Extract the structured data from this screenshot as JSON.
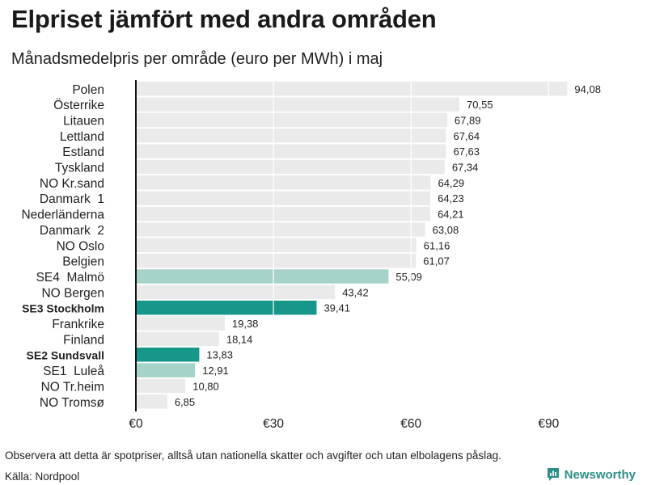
{
  "header": {
    "title": "Elpriset jämfört med andra områden",
    "subtitle": "Månadsmedelpris per område (euro per MWh) i maj"
  },
  "footer": {
    "note": "Observera att detta är spotpriser, alltså utan nationella skatter och avgifter och utan elbolagens påslag.",
    "source": "Källa: Nordpool",
    "brand": "Newsworthy"
  },
  "colors": {
    "default": "#eaeaea",
    "highlight_strong": "#16978a",
    "highlight_light": "#a6d3c9",
    "axis": "#111111",
    "grid": "#ffffff",
    "brand": "#2a8f86"
  },
  "chart_data": {
    "type": "bar",
    "orientation": "horizontal",
    "title": "Elpriset jämfört med andra områden",
    "subtitle": "Månadsmedelpris per område (euro per MWh) i maj",
    "xlabel": "",
    "ylabel": "",
    "xlim": [
      0,
      100
    ],
    "xticks": [
      0,
      30,
      60,
      90
    ],
    "xtick_labels": [
      "€0",
      "€30",
      "€60",
      "€90"
    ],
    "grid": true,
    "categories": [
      "Polen",
      "Österrike",
      "Litauen",
      "Lettland",
      "Estland",
      "Tyskland",
      "NO Kr.sand",
      "Danmark  1",
      "Nederländerna",
      "Danmark  2",
      "NO Oslo",
      "Belgien",
      "SE4  Malmö",
      "NO Bergen",
      "SE3 Stockholm",
      "Frankrike",
      "Finland",
      "SE2 Sundsvall",
      "SE1  Luleå",
      "NO Tr.heim",
      "NO Tromsø"
    ],
    "values": [
      94.08,
      70.55,
      67.89,
      67.64,
      67.63,
      67.34,
      64.29,
      64.23,
      64.21,
      63.08,
      61.16,
      61.07,
      55.09,
      43.42,
      39.41,
      19.38,
      18.14,
      13.83,
      12.91,
      10.8,
      6.85
    ],
    "value_labels": [
      "94,08",
      "70,55",
      "67,89",
      "67,64",
      "67,63",
      "67,34",
      "64,29",
      "64,23",
      "64,21",
      "63,08",
      "61,16",
      "61,07",
      "55,09",
      "43,42",
      "39,41",
      "19,38",
      "18,14",
      "13,83",
      "12,91",
      "10,80",
      "6,85"
    ],
    "highlight": [
      "none",
      "none",
      "none",
      "none",
      "none",
      "none",
      "none",
      "none",
      "none",
      "none",
      "none",
      "none",
      "light",
      "none",
      "strong",
      "none",
      "none",
      "strong",
      "light",
      "none",
      "none"
    ],
    "bold": [
      false,
      false,
      false,
      false,
      false,
      false,
      false,
      false,
      false,
      false,
      false,
      false,
      false,
      false,
      true,
      false,
      false,
      true,
      false,
      false,
      false
    ]
  }
}
